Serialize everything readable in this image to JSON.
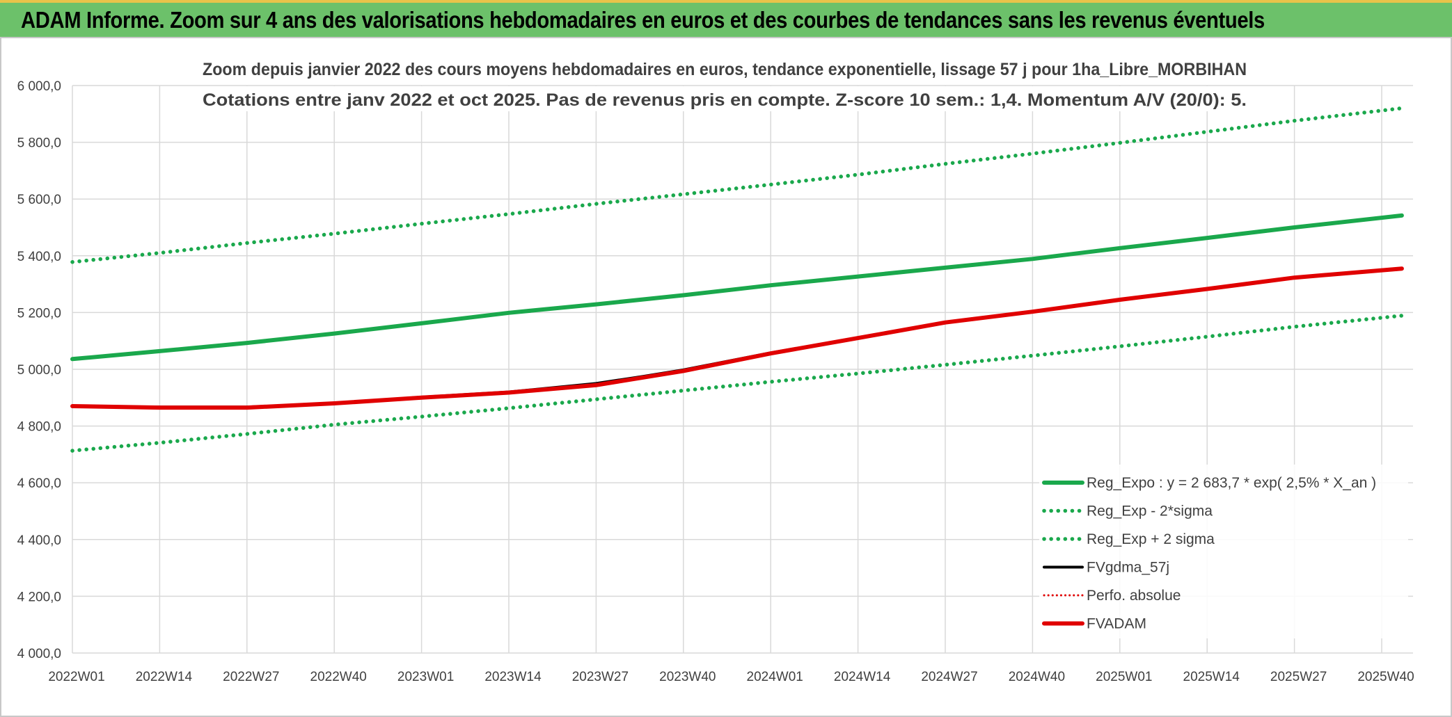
{
  "banner": {
    "title": "ADAM Informe. Zoom sur 4 ans des valorisations hebdomadaires en euros et des courbes de tendances sans les revenus éventuels"
  },
  "colors": {
    "banner_bg": "#6cc16a",
    "trend_green": "#1aa84c",
    "black": "#000000",
    "red": "#e00000",
    "grid": "#d9d9d9",
    "text": "#404040"
  },
  "chart_data": {
    "type": "line",
    "title_lines": [
      "Zoom depuis janvier 2022 des cours moyens hebdomadaires en euros, tendance exponentielle, lissage 57 j pour 1ha_Libre_MORBIHAN",
      "Cotations entre janv 2022 et oct 2025. Pas de revenus pris en compte. Z-score 10 sem.: 1,4. Momentum A/V (20/0): 5."
    ],
    "xlabel": "",
    "ylabel": "",
    "ylim": [
      4000,
      6000
    ],
    "y_ticks": [
      {
        "value": 4000,
        "label": "4 000,0"
      },
      {
        "value": 4200,
        "label": "4 200,0"
      },
      {
        "value": 4400,
        "label": "4 400,0"
      },
      {
        "value": 4600,
        "label": "4 600,0"
      },
      {
        "value": 4800,
        "label": "4 800,0"
      },
      {
        "value": 5000,
        "label": "5 000,0"
      },
      {
        "value": 5200,
        "label": "5 200,0"
      },
      {
        "value": 5400,
        "label": "5 400,0"
      },
      {
        "value": 5600,
        "label": "5 600,0"
      },
      {
        "value": 5800,
        "label": "5 800,0"
      },
      {
        "value": 6000,
        "label": "6 000,0"
      }
    ],
    "x_range": [
      0,
      198
    ],
    "x_ticks": [
      {
        "index": 0,
        "label": "2022W01"
      },
      {
        "index": 13,
        "label": "2022W14"
      },
      {
        "index": 26,
        "label": "2022W27"
      },
      {
        "index": 39,
        "label": "2022W40"
      },
      {
        "index": 52,
        "label": "2023W01"
      },
      {
        "index": 65,
        "label": "2023W14"
      },
      {
        "index": 78,
        "label": "2023W27"
      },
      {
        "index": 91,
        "label": "2023W40"
      },
      {
        "index": 104,
        "label": "2024W01"
      },
      {
        "index": 117,
        "label": "2024W14"
      },
      {
        "index": 130,
        "label": "2024W27"
      },
      {
        "index": 143,
        "label": "2024W40"
      },
      {
        "index": 156,
        "label": "2025W01"
      },
      {
        "index": 169,
        "label": "2025W14"
      },
      {
        "index": 182,
        "label": "2025W27"
      },
      {
        "index": 195,
        "label": "2025W40"
      }
    ],
    "grid": true,
    "legend_position": "bottom-right",
    "series": [
      {
        "name": "Reg_Expo : y = 2 683,7 * exp( 2,5% *  X_an )",
        "style": "solid-thick",
        "color": "#1aa84c",
        "points": [
          [
            0,
            5036
          ],
          [
            13,
            5064
          ],
          [
            26,
            5093
          ],
          [
            39,
            5126
          ],
          [
            52,
            5162
          ],
          [
            65,
            5199
          ],
          [
            78,
            5229
          ],
          [
            91,
            5261
          ],
          [
            104,
            5296
          ],
          [
            117,
            5327
          ],
          [
            130,
            5358
          ],
          [
            143,
            5389
          ],
          [
            156,
            5427
          ],
          [
            169,
            5463
          ],
          [
            182,
            5500
          ],
          [
            198,
            5542
          ]
        ]
      },
      {
        "name": "Reg_Exp - 2*sigma",
        "style": "dotted",
        "color": "#1aa84c",
        "points": [
          [
            0,
            4713
          ],
          [
            13,
            4741
          ],
          [
            26,
            4772
          ],
          [
            39,
            4805
          ],
          [
            52,
            4833
          ],
          [
            65,
            4863
          ],
          [
            78,
            4894
          ],
          [
            91,
            4925
          ],
          [
            104,
            4956
          ],
          [
            117,
            4985
          ],
          [
            130,
            5016
          ],
          [
            143,
            5048
          ],
          [
            156,
            5081
          ],
          [
            169,
            5115
          ],
          [
            182,
            5150
          ],
          [
            198,
            5189
          ]
        ]
      },
      {
        "name": "Reg_Exp + 2 sigma",
        "style": "dotted",
        "color": "#1aa84c",
        "points": [
          [
            0,
            5378
          ],
          [
            13,
            5410
          ],
          [
            26,
            5445
          ],
          [
            39,
            5478
          ],
          [
            52,
            5513
          ],
          [
            65,
            5547
          ],
          [
            78,
            5583
          ],
          [
            91,
            5617
          ],
          [
            104,
            5651
          ],
          [
            117,
            5686
          ],
          [
            130,
            5724
          ],
          [
            143,
            5760
          ],
          [
            156,
            5798
          ],
          [
            169,
            5837
          ],
          [
            182,
            5876
          ],
          [
            198,
            5920
          ]
        ]
      },
      {
        "name": "FVgdma_57j",
        "style": "solid",
        "color": "#000000",
        "points": [
          [
            0,
            4870
          ],
          [
            13,
            4867
          ],
          [
            26,
            4867
          ],
          [
            39,
            4880
          ],
          [
            52,
            4902
          ],
          [
            65,
            4920
          ],
          [
            78,
            4950
          ],
          [
            85,
            4975
          ],
          [
            91,
            4998
          ],
          [
            104,
            5058
          ],
          [
            117,
            5110
          ],
          [
            130,
            5165
          ],
          [
            143,
            5203
          ],
          [
            156,
            5245
          ],
          [
            169,
            5283
          ],
          [
            182,
            5323
          ],
          [
            198,
            5353
          ]
        ]
      },
      {
        "name": "Perfo. absolue",
        "style": "dotted-thin",
        "color": "#e00000",
        "points": [
          [
            0,
            4870
          ],
          [
            13,
            4865
          ],
          [
            26,
            4865
          ],
          [
            39,
            4880
          ],
          [
            52,
            4900
          ],
          [
            65,
            4918
          ],
          [
            78,
            4944
          ],
          [
            91,
            4994
          ],
          [
            104,
            5056
          ],
          [
            117,
            5110
          ],
          [
            130,
            5165
          ],
          [
            143,
            5203
          ],
          [
            156,
            5245
          ],
          [
            169,
            5283
          ],
          [
            182,
            5323
          ],
          [
            198,
            5355
          ]
        ]
      },
      {
        "name": "FVADAM",
        "style": "solid-thick",
        "color": "#e00000",
        "points": [
          [
            0,
            4870
          ],
          [
            13,
            4865
          ],
          [
            26,
            4865
          ],
          [
            39,
            4880
          ],
          [
            52,
            4900
          ],
          [
            65,
            4918
          ],
          [
            78,
            4944
          ],
          [
            91,
            4994
          ],
          [
            104,
            5056
          ],
          [
            117,
            5110
          ],
          [
            130,
            5165
          ],
          [
            143,
            5203
          ],
          [
            156,
            5245
          ],
          [
            169,
            5283
          ],
          [
            182,
            5323
          ],
          [
            198,
            5355
          ]
        ]
      }
    ]
  }
}
